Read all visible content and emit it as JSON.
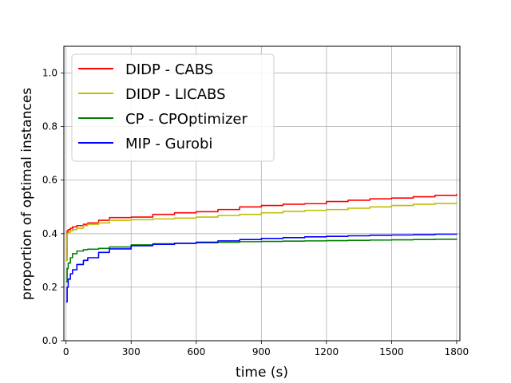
{
  "chart_data": {
    "type": "line",
    "title": "",
    "xlabel": "time (s)",
    "ylabel": "proportion of optimal instances",
    "xlim": [
      -10,
      1815
    ],
    "ylim": [
      0.0,
      1.1
    ],
    "xticks": [
      0,
      300,
      600,
      900,
      1200,
      1500,
      1800
    ],
    "yticks": [
      0.0,
      0.2,
      0.4,
      0.6,
      0.8,
      1.0
    ],
    "xtick_labels": [
      "0",
      "300",
      "600",
      "900",
      "1200",
      "1500",
      "1800"
    ],
    "ytick_labels": [
      "0.0",
      "0.2",
      "0.4",
      "0.6",
      "0.8",
      "1.0"
    ],
    "grid": true,
    "legend_position": "top-left",
    "series": [
      {
        "name": "DIDP - CABS",
        "color": "#ff0000",
        "x": [
          0,
          5,
          10,
          20,
          30,
          50,
          80,
          100,
          150,
          200,
          300,
          400,
          500,
          600,
          700,
          800,
          900,
          1000,
          1100,
          1200,
          1300,
          1400,
          1500,
          1600,
          1700,
          1800
        ],
        "y": [
          0.3,
          0.41,
          0.415,
          0.42,
          0.425,
          0.43,
          0.435,
          0.44,
          0.45,
          0.46,
          0.462,
          0.472,
          0.478,
          0.482,
          0.49,
          0.5,
          0.505,
          0.51,
          0.512,
          0.52,
          0.525,
          0.53,
          0.533,
          0.538,
          0.543,
          0.548
        ]
      },
      {
        "name": "DIDP - LICABS",
        "color": "#bfbf00",
        "x": [
          0,
          5,
          10,
          20,
          30,
          50,
          80,
          100,
          150,
          200,
          300,
          400,
          500,
          600,
          700,
          800,
          900,
          1000,
          1100,
          1200,
          1300,
          1400,
          1500,
          1600,
          1700,
          1800
        ],
        "y": [
          0.3,
          0.4,
          0.405,
          0.41,
          0.415,
          0.42,
          0.43,
          0.435,
          0.44,
          0.45,
          0.452,
          0.455,
          0.458,
          0.462,
          0.468,
          0.472,
          0.478,
          0.483,
          0.487,
          0.49,
          0.495,
          0.5,
          0.505,
          0.51,
          0.513,
          0.517
        ]
      },
      {
        "name": "CP - CPOptimizer",
        "color": "#008000",
        "x": [
          0,
          5,
          10,
          20,
          30,
          50,
          80,
          100,
          150,
          200,
          300,
          400,
          500,
          600,
          700,
          800,
          900,
          1000,
          1100,
          1200,
          1300,
          1400,
          1500,
          1600,
          1700,
          1800
        ],
        "y": [
          0.22,
          0.27,
          0.29,
          0.31,
          0.325,
          0.335,
          0.34,
          0.342,
          0.345,
          0.35,
          0.358,
          0.362,
          0.364,
          0.366,
          0.368,
          0.37,
          0.371,
          0.372,
          0.373,
          0.374,
          0.375,
          0.376,
          0.377,
          0.378,
          0.379,
          0.381
        ]
      },
      {
        "name": "MIP - Gurobi",
        "color": "#0000ff",
        "x": [
          0,
          5,
          10,
          20,
          30,
          50,
          80,
          100,
          150,
          200,
          300,
          400,
          500,
          600,
          700,
          800,
          900,
          1000,
          1100,
          1200,
          1300,
          1400,
          1500,
          1600,
          1700,
          1800
        ],
        "y": [
          0.145,
          0.2,
          0.23,
          0.25,
          0.265,
          0.285,
          0.3,
          0.31,
          0.33,
          0.343,
          0.355,
          0.36,
          0.364,
          0.368,
          0.373,
          0.378,
          0.382,
          0.385,
          0.388,
          0.39,
          0.392,
          0.394,
          0.395,
          0.396,
          0.398,
          0.4
        ]
      }
    ]
  }
}
